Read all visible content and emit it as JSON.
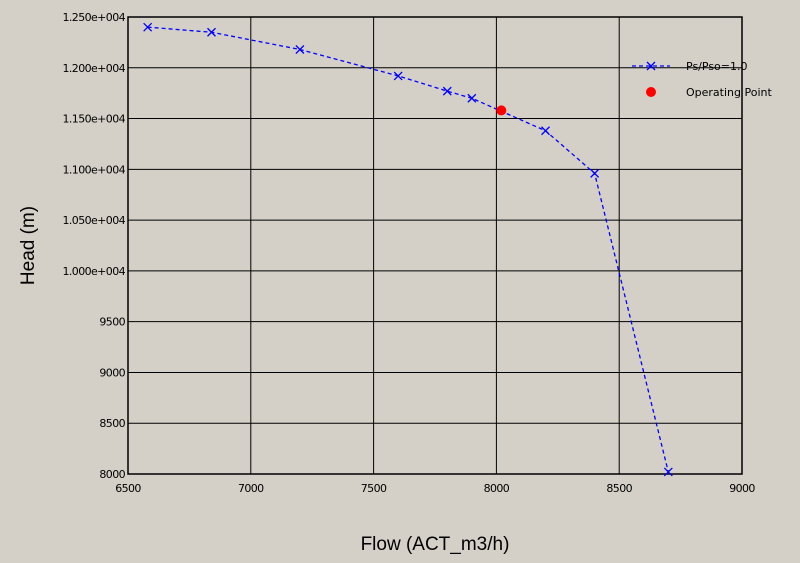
{
  "chart_data": {
    "type": "scatter",
    "xlabel": "Flow (ACT_m3/h)",
    "ylabel": "Head (m)",
    "xlim": [
      6500,
      9000
    ],
    "ylim": [
      8000,
      12500
    ],
    "x_ticks": [
      6500,
      7000,
      7500,
      8000,
      8500,
      9000
    ],
    "x_tick_labels": [
      "6500",
      "7000",
      "7500",
      "8000",
      "8500",
      "9000"
    ],
    "y_ticks": [
      8000,
      8500,
      9000,
      9500,
      10000,
      10500,
      11000,
      11500,
      12000,
      12500
    ],
    "y_tick_labels": [
      "8000",
      "8500",
      "9000",
      "9500",
      "1.000e+004",
      "1.050e+004",
      "1.100e+004",
      "1.150e+004",
      "1.200e+004",
      "1.250e+004"
    ],
    "grid": true,
    "legend_position": "top-right",
    "series": [
      {
        "name": "Ps/Pso=1.0",
        "style": "dashed-line-x-markers",
        "color": "#0000ff",
        "x": [
          6580,
          6840,
          7200,
          7600,
          7800,
          7900,
          8200,
          8400,
          8700
        ],
        "y": [
          12400,
          12350,
          12180,
          11920,
          11770,
          11700,
          11380,
          10960,
          8020
        ]
      },
      {
        "name": "Operating Point",
        "style": "filled-circle",
        "color": "#ff0000",
        "x": [
          8020
        ],
        "y": [
          11580
        ]
      }
    ]
  }
}
